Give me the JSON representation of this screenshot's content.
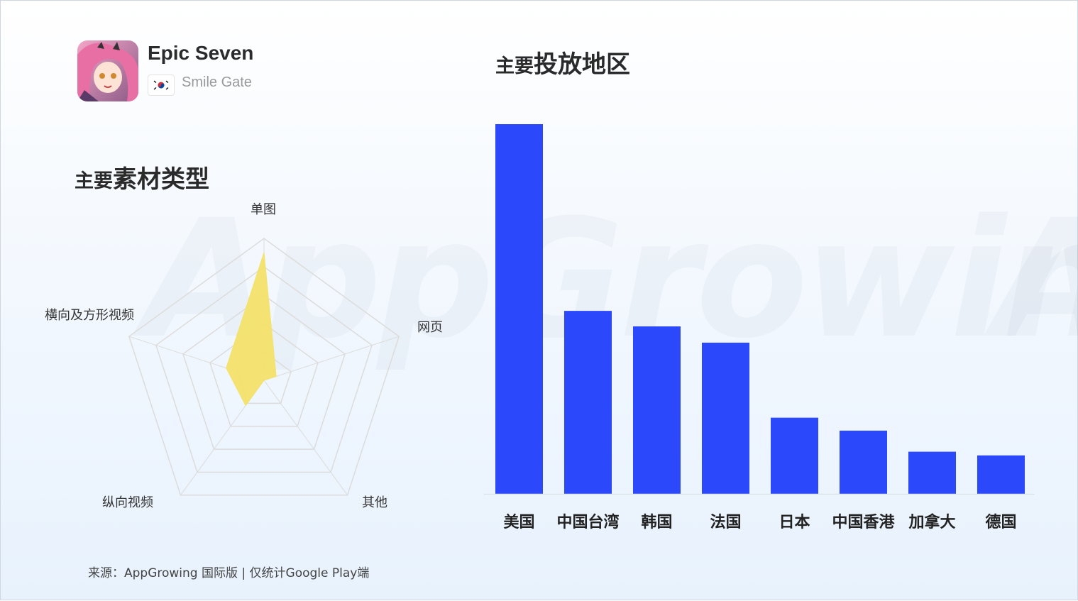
{
  "app": {
    "name": "Epic Seven",
    "publisher": "Smile Gate",
    "country_flag": "south-korea-flag"
  },
  "sections": {
    "type_title_small": "主要",
    "type_title_big": "素材类型",
    "region_title_small": "主要",
    "region_title_big": "投放地区"
  },
  "footer": {
    "source": "来源：AppGrowing 国际版 | 仅统计Google Play端"
  },
  "colors": {
    "bar": "#2b48fb",
    "radar_fill": "#f3e26a",
    "grid": "#dcdcdc"
  },
  "chart_data": [
    {
      "type": "radar",
      "title": "主要素材类型",
      "axes": [
        "单图",
        "网页",
        "其他",
        "纵向视频",
        "横向及方形视频"
      ],
      "values": [
        0.9,
        0.09,
        0.0,
        0.22,
        0.28
      ],
      "range": [
        0,
        1
      ],
      "rings": 5
    },
    {
      "type": "bar",
      "title": "主要投放地区",
      "categories": [
        "美国",
        "中国台湾",
        "韩国",
        "法国",
        "日本",
        "中国香港",
        "加拿大",
        "德国"
      ],
      "values": [
        100,
        49.5,
        45.3,
        40.9,
        20.6,
        17.1,
        11.4,
        10.4
      ],
      "ylim": [
        0,
        100
      ],
      "grid": false
    }
  ]
}
